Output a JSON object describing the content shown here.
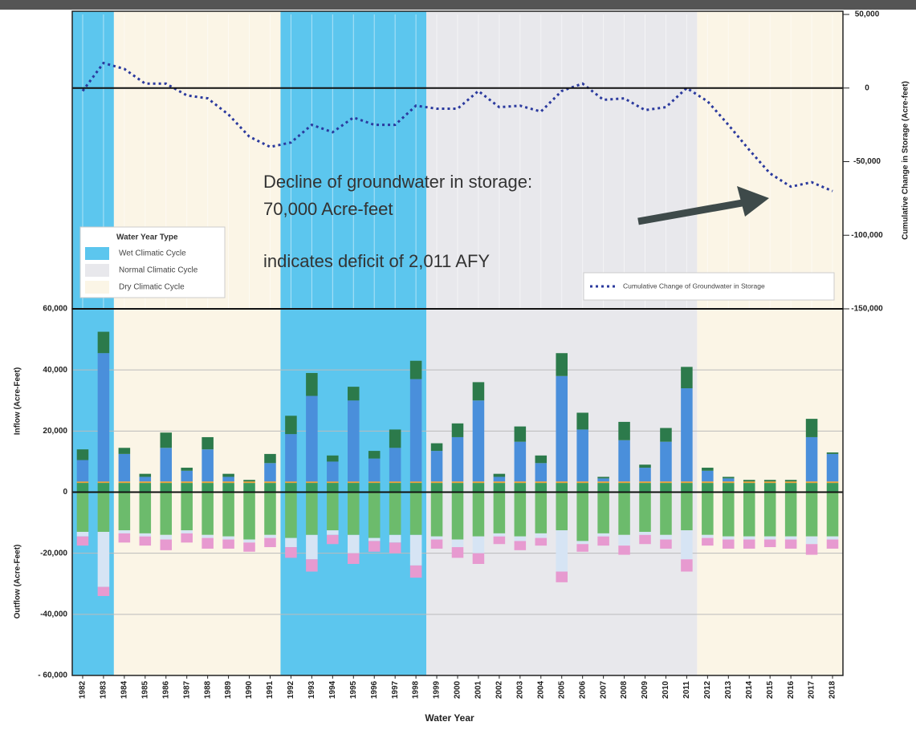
{
  "chart_data": {
    "type": "bar",
    "categories": [
      "1982",
      "1983",
      "1984",
      "1985",
      "1986",
      "1987",
      "1988",
      "1989",
      "1990",
      "1991",
      "1992",
      "1993",
      "1994",
      "1995",
      "1996",
      "1997",
      "1998",
      "1999",
      "2000",
      "2001",
      "2002",
      "2003",
      "2004",
      "2005",
      "2006",
      "2007",
      "2008",
      "2009",
      "2010",
      "2011",
      "2012",
      "2013",
      "2014",
      "2015",
      "2016",
      "2017",
      "2018"
    ],
    "xlabel": "Water Year",
    "ylabels": [
      "Inflow (Acre-Feet)",
      "Outflow (Acre-Feet)"
    ],
    "y2label": "Cumulative Change in Storage (Acre-feet)",
    "ylim": [
      -60000,
      60000
    ],
    "yticks": [
      {
        "value": 60000,
        "label": "60,000"
      },
      {
        "value": 40000,
        "label": "40,000"
      },
      {
        "value": 20000,
        "label": "20,000"
      },
      0,
      {
        "value": -20000,
        "label": "-20,000"
      },
      {
        "value": -40000,
        "label": "-40,000"
      },
      {
        "value": -60000,
        "label": "- 60,000"
      }
    ],
    "y2lim": [
      -150000,
      50000
    ],
    "y2ticks": [
      {
        "value": 50000,
        "label": "50,000"
      },
      0,
      {
        "value": -50000,
        "label": "-50,000"
      },
      {
        "value": -100000,
        "label": "-100,000"
      },
      {
        "value": -150000,
        "label": "-150,000"
      }
    ],
    "grid": true,
    "water_year_types": {
      "title": "Water Year Type",
      "items": [
        {
          "label": "Wet Climatic Cycle",
          "color": "#5cc6ee"
        },
        {
          "label": "Normal Climatic Cycle",
          "color": "#e8e8ec"
        },
        {
          "label": "Dry Climatic Cycle",
          "color": "#fbf5e6"
        }
      ]
    },
    "periods": [
      {
        "type": 0,
        "from": 1982,
        "to": 1983
      },
      {
        "type": 2,
        "from": 1984,
        "to": 1991
      },
      {
        "type": 0,
        "from": 1992,
        "to": 1998
      },
      {
        "type": 1,
        "from": 1999,
        "to": 2011
      },
      {
        "type": 2,
        "from": 2012,
        "to": 2018
      }
    ],
    "annotations": [
      "Decline of groundwater in storage:",
      "70,000 Acre-feet",
      "indicates deficit of 2,011 AFY"
    ],
    "series": [
      {
        "color": "#3a9a5c",
        "values": [
          3000,
          3000,
          3000,
          3000,
          3000,
          3000,
          3000,
          3000,
          3000,
          3000,
          3000,
          3000,
          3000,
          3000,
          3000,
          3000,
          3000,
          3000,
          3000,
          3000,
          3000,
          3000,
          3000,
          3000,
          3000,
          3000,
          3000,
          3000,
          3000,
          3000,
          3000,
          3000,
          3000,
          3000,
          3000,
          3000,
          3000
        ]
      },
      {
        "color": "#e8a23a",
        "values": [
          500,
          500,
          500,
          500,
          500,
          500,
          500,
          500,
          500,
          500,
          500,
          500,
          500,
          500,
          500,
          500,
          500,
          500,
          500,
          500,
          500,
          500,
          500,
          500,
          500,
          500,
          500,
          500,
          500,
          500,
          500,
          500,
          500,
          500,
          500,
          500,
          500
        ]
      },
      {
        "color": "#4a8fdb",
        "values": [
          7000,
          42000,
          9000,
          1500,
          11000,
          3500,
          10500,
          1500,
          0,
          6000,
          15500,
          28000,
          6500,
          26500,
          7500,
          11000,
          33500,
          10000,
          14500,
          26500,
          1500,
          13000,
          6000,
          34500,
          17000,
          1000,
          13500,
          4500,
          13000,
          30500,
          3500,
          1000,
          0,
          0,
          0,
          14500,
          9000
        ]
      },
      {
        "color": "#2c7a4b",
        "values": [
          3500,
          7000,
          2000,
          1000,
          5000,
          1000,
          4000,
          1000,
          500,
          3000,
          6000,
          7500,
          2000,
          4500,
          2500,
          6000,
          6000,
          2500,
          4500,
          6000,
          1000,
          5000,
          2500,
          7500,
          5500,
          500,
          6000,
          1000,
          4500,
          7000,
          1000,
          500,
          500,
          500,
          500,
          6000,
          500
        ]
      },
      {
        "color": "#6cbb6c",
        "values": [
          -13000,
          -13000,
          -12500,
          -13500,
          -14000,
          -12500,
          -14000,
          -14500,
          -15500,
          -14000,
          -15000,
          -14000,
          -12500,
          -14000,
          -15000,
          -14000,
          -14000,
          -14500,
          -15500,
          -14500,
          -13500,
          -14500,
          -13500,
          -12500,
          -16000,
          -13500,
          -14000,
          -13000,
          -14000,
          -12500,
          -14000,
          -14500,
          -14500,
          -14500,
          -14500,
          -14500,
          -14500
        ]
      },
      {
        "color": "#d6e4f4",
        "values": [
          -1500,
          -18000,
          -1000,
          -1000,
          -1500,
          -1000,
          -1000,
          -1000,
          -1000,
          -1000,
          -3000,
          -8000,
          -1500,
          -6000,
          -1000,
          -2500,
          -10000,
          -1000,
          -2500,
          -5500,
          -1000,
          -1500,
          -1500,
          -13500,
          -1000,
          -1000,
          -3500,
          -1000,
          -1500,
          -9500,
          -1000,
          -1000,
          -1000,
          -1000,
          -1000,
          -2500,
          -1000
        ]
      },
      {
        "color": "#e79ad0",
        "values": [
          -3000,
          -3000,
          -3000,
          -3000,
          -3500,
          -3000,
          -3500,
          -3000,
          -3000,
          -3000,
          -3500,
          -4000,
          -3000,
          -3500,
          -3500,
          -3500,
          -4000,
          -3000,
          -3500,
          -3500,
          -2500,
          -3000,
          -2500,
          -3500,
          -2500,
          -3000,
          -3000,
          -3000,
          -3000,
          -4000,
          -2500,
          -3000,
          -3000,
          -2500,
          -3000,
          -3500,
          -3000
        ]
      },
      {
        "name": "Cumulative Change of Groundwater in Storage",
        "color": "#2b3a9e",
        "axis": "y2",
        "style": "dotted",
        "values": [
          -2000,
          17000,
          13000,
          3000,
          3000,
          -5000,
          -7000,
          -18000,
          -33000,
          -40000,
          -37000,
          -25000,
          -30000,
          -20000,
          -25000,
          -25000,
          -12000,
          -14000,
          -14000,
          -2000,
          -13000,
          -12000,
          -16000,
          -2000,
          3000,
          -8000,
          -7000,
          -15000,
          -13000,
          0,
          -9000,
          -25000,
          -42000,
          -58000,
          -67000,
          -64000,
          -70000
        ]
      }
    ]
  }
}
